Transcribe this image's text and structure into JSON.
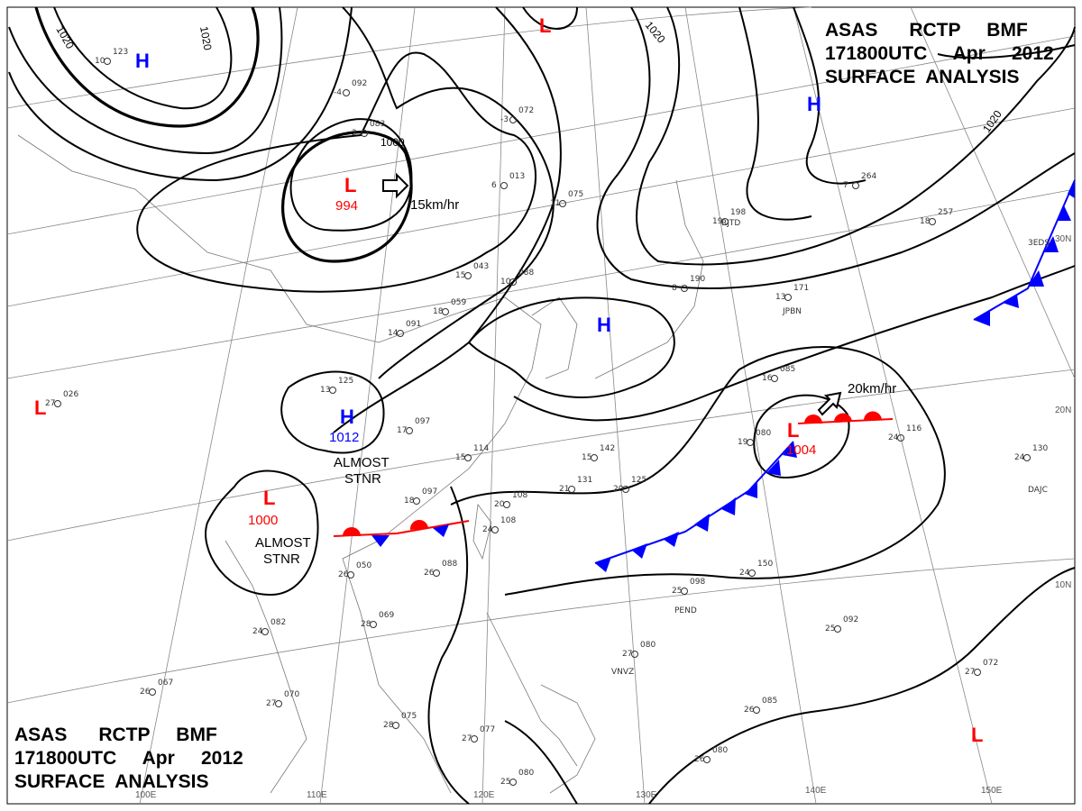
{
  "title_block": {
    "line1": "ASAS      RCTP     BMF",
    "line2": "171800UTC     Apr     2012",
    "line3": "SURFACE  ANALYSIS"
  },
  "colors": {
    "high": "#0000ff",
    "low": "#ff0000",
    "cold_front": "#0000ff",
    "warm_front": "#ff0000",
    "isobar": "#000000"
  },
  "longitude_labels": [
    "100E",
    "110E",
    "120E",
    "130E",
    "140E",
    "150E"
  ],
  "latitude_labels": [
    "30N",
    "20N",
    "10N"
  ],
  "isobar_labels": [
    "1020",
    "1020",
    "1000",
    "1020",
    "1020"
  ],
  "pressure_centers": [
    {
      "type": "H",
      "value": ""
    },
    {
      "type": "L",
      "value": ""
    },
    {
      "type": "H",
      "value": ""
    },
    {
      "type": "L",
      "value": "994"
    },
    {
      "type": "H",
      "value": ""
    },
    {
      "type": "L",
      "value": ""
    },
    {
      "type": "H",
      "value": "1012"
    },
    {
      "type": "L",
      "value": "1000"
    },
    {
      "type": "L",
      "value": "1004"
    },
    {
      "type": "L",
      "value": ""
    }
  ],
  "annotations": {
    "motion1": "15km/hr",
    "motion2": "20km/hr",
    "stnr1_a": "ALMOST",
    "stnr1_b": "STNR",
    "stnr2_a": "ALMOST",
    "stnr2_b": "STNR"
  },
  "stations": [
    {
      "t": "10",
      "p": "123"
    },
    {
      "t": "-4",
      "p": "092"
    },
    {
      "t": "2",
      "p": "083"
    },
    {
      "t": "6",
      "p": "013"
    },
    {
      "t": "-3",
      "p": "072"
    },
    {
      "t": "11",
      "p": "075"
    },
    {
      "t": "15",
      "p": "043"
    },
    {
      "t": "10",
      "p": "088"
    },
    {
      "t": "14",
      "p": "091"
    },
    {
      "t": "18",
      "p": "059"
    },
    {
      "t": "13",
      "p": "125"
    },
    {
      "t": "17",
      "p": "097"
    },
    {
      "t": "15",
      "p": "114"
    },
    {
      "t": "18",
      "p": "097"
    },
    {
      "t": "20",
      "p": "108"
    },
    {
      "t": "24",
      "p": "108"
    },
    {
      "t": "26",
      "p": "088"
    },
    {
      "t": "26",
      "p": "050"
    },
    {
      "t": "28",
      "p": "069"
    },
    {
      "t": "24",
      "p": "082"
    },
    {
      "t": "26",
      "p": "067"
    },
    {
      "t": "27",
      "p": "070"
    },
    {
      "t": "28",
      "p": "075"
    },
    {
      "t": "27",
      "p": "077"
    },
    {
      "t": "25",
      "p": "080"
    },
    {
      "t": "27",
      "p": "026"
    },
    {
      "t": "16",
      "p": "085"
    },
    {
      "t": "19",
      "p": "080"
    },
    {
      "t": "24",
      "p": "116"
    },
    {
      "t": "15",
      "p": "142"
    },
    {
      "t": "21",
      "p": "131"
    },
    {
      "t": "20",
      "p": "125"
    },
    {
      "t": "24",
      "p": "150"
    },
    {
      "t": "25",
      "p": "098"
    },
    {
      "t": "27",
      "p": "080"
    },
    {
      "t": "25",
      "p": "092"
    },
    {
      "t": "26",
      "p": "085"
    },
    {
      "t": "26",
      "p": "080"
    },
    {
      "t": "27",
      "p": "072"
    },
    {
      "t": "24",
      "p": "130"
    },
    {
      "t": "18",
      "p": "257"
    },
    {
      "t": "7",
      "p": "264"
    },
    {
      "t": "13",
      "p": "171"
    },
    {
      "t": "19",
      "p": "198"
    },
    {
      "t": "8",
      "p": "190"
    }
  ],
  "station_ids": [
    "RJTD",
    "JPBN",
    "PEND",
    "VNVZ",
    "DAJC",
    "3EDS"
  ]
}
